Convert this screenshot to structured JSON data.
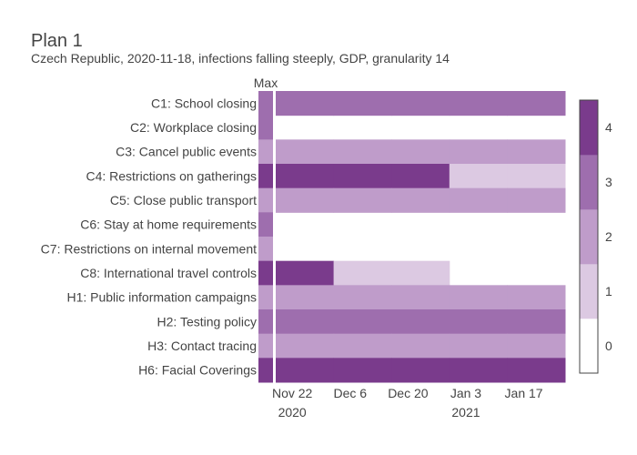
{
  "chart_data": {
    "type": "heatmap",
    "title": "Plan 1",
    "subtitle": "Czech Republic, 2020-11-18, infections falling steeply, GDP, granularity 14",
    "max_column_label": "Max",
    "row_labels": [
      "C1: School closing",
      "C2: Workplace closing",
      "C3: Cancel public events",
      "C4: Restrictions on gatherings",
      "C5: Close public transport",
      "C6: Stay at home requirements",
      "C7: Restrictions on internal movement",
      "C8: International travel controls",
      "H1: Public information campaigns",
      "H2: Testing policy",
      "H3: Contact tracing",
      "H6: Facial Coverings"
    ],
    "max_values": [
      3,
      3,
      2,
      4,
      2,
      3,
      2,
      4,
      2,
      3,
      2,
      4
    ],
    "period_start_dates": [
      "2020-11-18",
      "2020-12-02",
      "2020-12-16",
      "2020-12-30",
      "2021-01-13"
    ],
    "period_end_date": "2021-01-27",
    "values": [
      [
        3,
        3,
        3,
        3,
        3
      ],
      [
        null,
        null,
        null,
        null,
        null
      ],
      [
        2,
        2,
        2,
        2,
        2
      ],
      [
        4,
        4,
        4,
        1,
        1
      ],
      [
        2,
        2,
        2,
        2,
        2
      ],
      [
        null,
        null,
        null,
        null,
        null
      ],
      [
        null,
        null,
        null,
        null,
        null
      ],
      [
        4,
        1,
        1,
        null,
        null
      ],
      [
        2,
        2,
        2,
        2,
        2
      ],
      [
        3,
        3,
        3,
        3,
        3
      ],
      [
        2,
        2,
        2,
        2,
        2
      ],
      [
        4,
        4,
        4,
        4,
        4
      ]
    ],
    "x_ticks": [
      {
        "date": "2020-11-22",
        "label": "Nov 22",
        "sublabel": "2020"
      },
      {
        "date": "2020-12-06",
        "label": "Dec 6",
        "sublabel": ""
      },
      {
        "date": "2020-12-20",
        "label": "Dec 20",
        "sublabel": ""
      },
      {
        "date": "2021-01-03",
        "label": "Jan 3",
        "sublabel": "2021"
      },
      {
        "date": "2021-01-17",
        "label": "Jan 17",
        "sublabel": ""
      }
    ],
    "colorscale": [
      "#ffffff",
      "#dcc9e2",
      "#bf9cca",
      "#9e6eae",
      "#7a3b8c"
    ],
    "colorbar_ticks": [
      "0",
      "1",
      "2",
      "3",
      "4"
    ]
  }
}
